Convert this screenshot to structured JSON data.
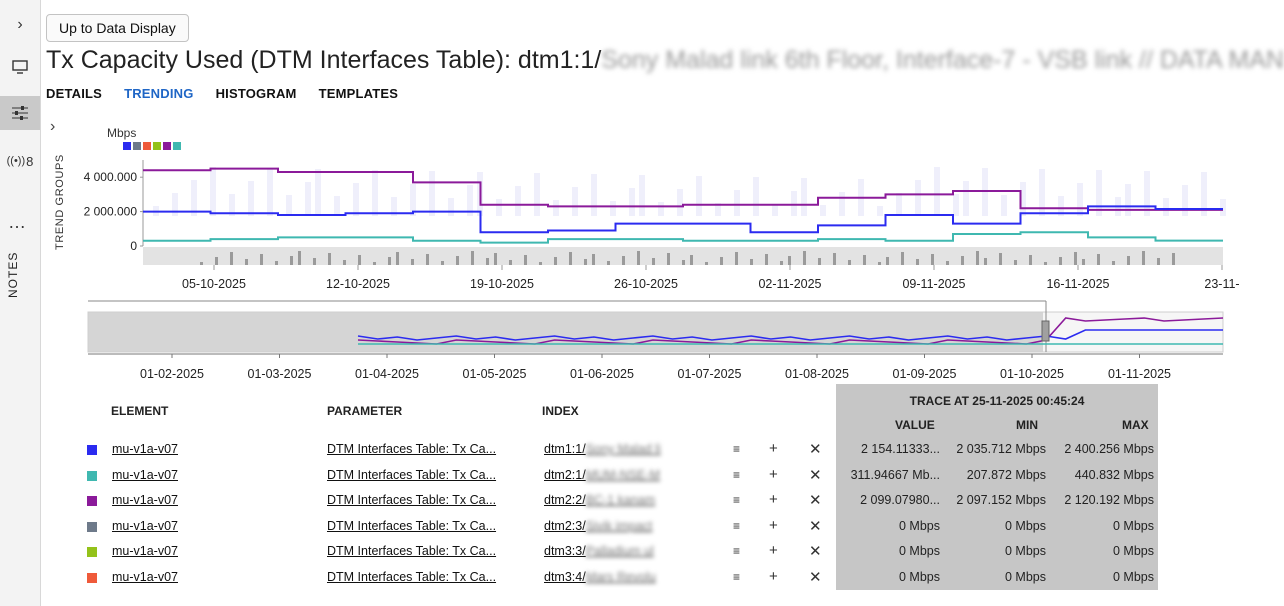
{
  "rail": {
    "items": [
      {
        "icon": "chevron-right-icon",
        "glyph": "›"
      },
      {
        "icon": "monitor-icon",
        "glyph": "🖵"
      },
      {
        "icon": "sliders-icon",
        "glyph": "☰"
      },
      {
        "icon": "signal-icon",
        "glyph": "(·)",
        "count": "8"
      }
    ],
    "more": "…",
    "notes": "NOTES"
  },
  "header": {
    "up_button": "Up to Data Display",
    "title": "Tx Capacity Used (DTM Interfaces Table): dtm1:1/",
    "title_redacted": "Sony Malad link 6th Floor, Interface-7 - VSB link // DATA MAN"
  },
  "tabs": [
    {
      "label": "DETAILS",
      "active": false
    },
    {
      "label": "TRENDING",
      "active": true
    },
    {
      "label": "HISTOGRAM",
      "active": false
    },
    {
      "label": "TEMPLATES",
      "active": false
    }
  ],
  "trend_groups_label": "TREND GROUPS",
  "unit": "Mbps",
  "series_colors": [
    "#2b2bf0",
    "#6e7a8a",
    "#ef5a3a",
    "#94c21a",
    "#8b1a9a",
    "#3fb8b0"
  ],
  "chart_data": [
    {
      "type": "line",
      "ylabel": "Mbps",
      "yticks": [
        "4 000.000",
        "2 000.000",
        "0"
      ],
      "ylim": [
        0,
        5000
      ],
      "xticks": [
        "05-10-2025",
        "12-10-2025",
        "19-10-2025",
        "26-10-2025",
        "02-11-2025",
        "09-11-2025",
        "16-11-2025",
        "23-11-"
      ],
      "series": [
        {
          "color": "#8b1a9a",
          "values": [
            4400,
            4500,
            4300,
            4300,
            3700,
            2400,
            2300,
            2300,
            2400,
            2400,
            2800,
            3000,
            3200,
            2200,
            2100,
            2099
          ]
        },
        {
          "color": "#2b2bf0",
          "values": [
            2000,
            1900,
            1800,
            1900,
            2000,
            800,
            900,
            1300,
            1300,
            800,
            1200,
            1800,
            1300,
            1900,
            2300,
            2154
          ]
        },
        {
          "color": "#3fb8b0",
          "values": [
            300,
            400,
            500,
            500,
            300,
            200,
            400,
            400,
            300,
            300,
            400,
            300,
            700,
            800,
            500,
            312
          ]
        }
      ]
    },
    {
      "type": "line",
      "xticks": [
        "01-02-2025",
        "01-03-2025",
        "01-04-2025",
        "01-05-2025",
        "01-06-2025",
        "01-07-2025",
        "01-08-2025",
        "01-09-2025",
        "01-10-2025",
        "01-11-2025"
      ]
    }
  ],
  "table": {
    "headers": {
      "element": "ELEMENT",
      "parameter": "PARAMETER",
      "index": "INDEX"
    },
    "trace_title": "TRACE AT 25-11-2025 00:45:24",
    "trace_cols": {
      "value": "VALUE",
      "min": "MIN",
      "max": "MAX"
    },
    "rows": [
      {
        "color": "#2b2bf0",
        "element": "mu-v1a-v07",
        "parameter": "DTM Interfaces Table: Tx Ca...",
        "index": "dtm1:1/",
        "index_redacted": "Sony Malad li",
        "value": "2 154.11333...",
        "min": "2 035.712 Mbps",
        "max": "2 400.256 Mbps"
      },
      {
        "color": "#3fb8b0",
        "element": "mu-v1a-v07",
        "parameter": "DTM Interfaces Table: Tx Ca...",
        "index": "dtm2:1/",
        "index_redacted": "MUM-NSE-M",
        "value": "311.94667 Mb...",
        "min": "207.872 Mbps",
        "max": "440.832 Mbps"
      },
      {
        "color": "#8b1a9a",
        "element": "mu-v1a-v07",
        "parameter": "DTM Interfaces Table: Tx Ca...",
        "index": "dtm2:2/",
        "index_redacted": "BC-1 kanam",
        "value": "2 099.07980...",
        "min": "2 097.152 Mbps",
        "max": "2 120.192 Mbps"
      },
      {
        "color": "#6e7a8a",
        "element": "mu-v1a-v07",
        "parameter": "DTM Interfaces Table: Tx Ca...",
        "index": "dtm2:3/",
        "index_redacted": "Sivik impact",
        "value": "0 Mbps",
        "min": "0 Mbps",
        "max": "0 Mbps"
      },
      {
        "color": "#94c21a",
        "element": "mu-v1a-v07",
        "parameter": "DTM Interfaces Table: Tx Ca...",
        "index": "dtm3:3/",
        "index_redacted": "Palladium ul",
        "value": "0 Mbps",
        "min": "0 Mbps",
        "max": "0 Mbps"
      },
      {
        "color": "#ef5a3a",
        "element": "mu-v1a-v07",
        "parameter": "DTM Interfaces Table: Tx Ca...",
        "index": "dtm3:4/",
        "index_redacted": "Mars Revolu",
        "value": "0 Mbps",
        "min": "0 Mbps",
        "max": "0 Mbps"
      }
    ],
    "row_actions": {
      "list": "≡",
      "add": "+",
      "remove": "✕"
    }
  }
}
